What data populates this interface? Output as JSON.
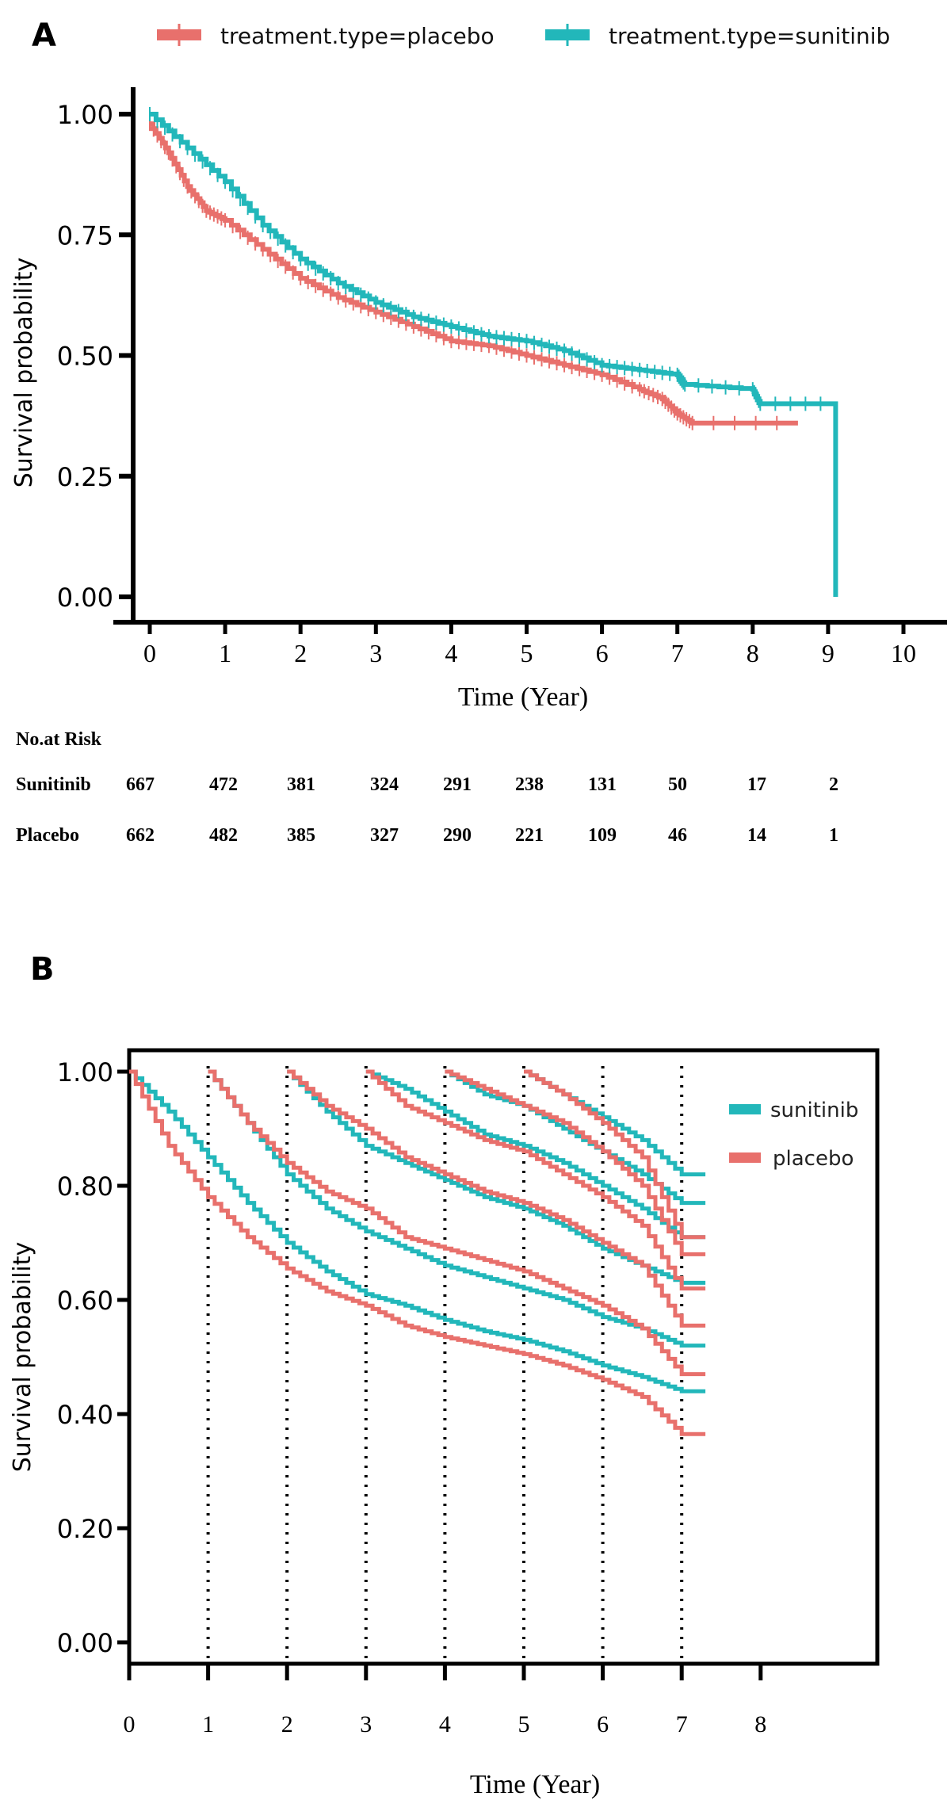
{
  "colors": {
    "placebo": "#E8706C",
    "sunitinib": "#22B7BA"
  },
  "chart_data": [
    {
      "panel_label": "A",
      "type": "line",
      "step": true,
      "xlabel": "Time (Year)",
      "ylabel": "Survival probability",
      "xlim": [
        0,
        10
      ],
      "ylim": [
        0,
        1
      ],
      "xticks": [
        "0",
        "1",
        "2",
        "3",
        "4",
        "5",
        "6",
        "7",
        "8",
        "9",
        "10"
      ],
      "yticks": [
        "0.00",
        "0.25",
        "0.50",
        "0.75",
        "1.00"
      ],
      "legend_position": "top",
      "grid": false,
      "series": [
        {
          "name": "treatment.type=placebo",
          "color": "#E8706C",
          "x": [
            0,
            0.25,
            0.5,
            0.75,
            1,
            1.5,
            2,
            2.5,
            3,
            3.5,
            4,
            4.5,
            5,
            5.5,
            6,
            6.5,
            6.8,
            7,
            7.2,
            8.6
          ],
          "y": [
            0.98,
            0.92,
            0.85,
            0.8,
            0.78,
            0.72,
            0.66,
            0.62,
            0.59,
            0.56,
            0.53,
            0.52,
            0.5,
            0.48,
            0.46,
            0.43,
            0.41,
            0.38,
            0.36,
            0.36
          ]
        },
        {
          "name": "treatment.type=sunitinib",
          "color": "#22B7BA",
          "x": [
            0,
            0.5,
            1,
            1.5,
            2,
            2.5,
            3,
            3.5,
            4,
            4.5,
            5,
            5.5,
            6,
            6.5,
            7,
            7.1,
            8,
            8.1,
            9.1,
            9.1
          ],
          "y": [
            1.0,
            0.93,
            0.86,
            0.77,
            0.7,
            0.65,
            0.61,
            0.58,
            0.56,
            0.54,
            0.53,
            0.51,
            0.48,
            0.47,
            0.46,
            0.44,
            0.43,
            0.4,
            0.4,
            0.0
          ]
        }
      ],
      "risk_table": {
        "title": "No.at Risk",
        "rows": [
          {
            "label": "Sunitinib",
            "values": [
              "667",
              "472",
              "381",
              "324",
              "291",
              "238",
              "131",
              "50",
              "17",
              "2"
            ]
          },
          {
            "label": "Placebo",
            "values": [
              "662",
              "482",
              "385",
              "327",
              "290",
              "221",
              "109",
              "46",
              "14",
              "1"
            ]
          }
        ]
      }
    },
    {
      "panel_label": "B",
      "type": "line",
      "step": true,
      "xlabel": "Time (Year)",
      "ylabel": "Survival probability",
      "xlim": [
        0,
        8
      ],
      "ylim": [
        0,
        1
      ],
      "xticks": [
        "0",
        "1",
        "2",
        "3",
        "4",
        "5",
        "6",
        "7",
        "8"
      ],
      "yticks": [
        "0.00",
        "0.20",
        "0.40",
        "0.60",
        "0.80",
        "1.00"
      ],
      "vertical_dotted_lines": [
        1,
        2,
        3,
        4,
        5,
        6,
        7
      ],
      "legend_position": "top-right",
      "legend": [
        "sunitinib",
        "placebo"
      ],
      "grid": false,
      "series": [
        {
          "group": "sunitinib",
          "landmark": 0,
          "x": [
            0,
            0.5,
            1,
            1.5,
            2,
            2.5,
            3,
            3.5,
            4,
            4.5,
            5,
            5.5,
            6,
            6.5,
            7,
            7.3
          ],
          "y": [
            1.0,
            0.93,
            0.85,
            0.77,
            0.7,
            0.65,
            0.61,
            0.59,
            0.565,
            0.545,
            0.53,
            0.51,
            0.485,
            0.465,
            0.44,
            0.44
          ]
        },
        {
          "group": "sunitinib",
          "landmark": 1,
          "x": [
            1,
            1.5,
            2,
            2.5,
            3,
            3.5,
            4,
            4.5,
            5,
            5.5,
            6,
            6.5,
            7,
            7.3
          ],
          "y": [
            1,
            0.91,
            0.82,
            0.76,
            0.72,
            0.69,
            0.66,
            0.64,
            0.62,
            0.6,
            0.57,
            0.55,
            0.52,
            0.52
          ]
        },
        {
          "group": "sunitinib",
          "landmark": 2,
          "x": [
            2,
            2.5,
            3,
            3.5,
            4,
            4.5,
            5,
            5.5,
            6,
            6.5,
            7,
            7.3
          ],
          "y": [
            1,
            0.93,
            0.87,
            0.84,
            0.81,
            0.78,
            0.76,
            0.73,
            0.69,
            0.66,
            0.63,
            0.63
          ]
        },
        {
          "group": "sunitinib",
          "landmark": 3,
          "x": [
            3,
            3.5,
            4,
            4.5,
            5,
            5.5,
            6,
            6.5,
            7,
            7.3
          ],
          "y": [
            1,
            0.97,
            0.93,
            0.89,
            0.87,
            0.84,
            0.8,
            0.76,
            0.71,
            0.71
          ]
        },
        {
          "group": "sunitinib",
          "landmark": 4,
          "x": [
            4,
            4.5,
            5,
            5.5,
            6,
            6.5,
            7,
            7.3
          ],
          "y": [
            1,
            0.96,
            0.94,
            0.9,
            0.86,
            0.82,
            0.77,
            0.77
          ]
        },
        {
          "group": "sunitinib",
          "landmark": 5,
          "x": [
            5,
            5.5,
            6,
            6.5,
            7,
            7.3
          ],
          "y": [
            1,
            0.96,
            0.92,
            0.88,
            0.82,
            0.82
          ]
        },
        {
          "group": "placebo",
          "landmark": 0,
          "x": [
            0,
            0.5,
            1,
            1.5,
            2,
            2.5,
            3,
            3.5,
            4,
            4.5,
            5,
            5.5,
            6,
            6.5,
            7,
            7.3
          ],
          "y": [
            1.0,
            0.87,
            0.78,
            0.71,
            0.655,
            0.615,
            0.59,
            0.555,
            0.535,
            0.52,
            0.505,
            0.485,
            0.46,
            0.43,
            0.365,
            0.365
          ]
        },
        {
          "group": "placebo",
          "landmark": 1,
          "x": [
            1,
            1.5,
            2,
            2.5,
            3,
            3.5,
            4,
            4.5,
            5,
            5.5,
            6,
            6.5,
            7,
            7.3
          ],
          "y": [
            1,
            0.91,
            0.84,
            0.79,
            0.76,
            0.71,
            0.69,
            0.67,
            0.65,
            0.62,
            0.59,
            0.55,
            0.47,
            0.47
          ]
        },
        {
          "group": "placebo",
          "landmark": 2,
          "x": [
            2,
            2.5,
            3,
            3.5,
            4,
            4.5,
            5,
            5.5,
            6,
            6.5,
            7,
            7.3
          ],
          "y": [
            1,
            0.94,
            0.9,
            0.85,
            0.82,
            0.79,
            0.77,
            0.74,
            0.7,
            0.66,
            0.555,
            0.555
          ]
        },
        {
          "group": "placebo",
          "landmark": 3,
          "x": [
            3,
            3.5,
            4,
            4.5,
            5,
            5.5,
            6,
            6.5,
            7,
            7.3
          ],
          "y": [
            1,
            0.94,
            0.91,
            0.88,
            0.86,
            0.82,
            0.78,
            0.73,
            0.62,
            0.62
          ]
        },
        {
          "group": "placebo",
          "landmark": 4,
          "x": [
            4,
            4.5,
            5,
            5.5,
            6,
            6.5,
            7,
            7.3
          ],
          "y": [
            1,
            0.97,
            0.94,
            0.91,
            0.86,
            0.8,
            0.68,
            0.68
          ]
        },
        {
          "group": "placebo",
          "landmark": 5,
          "x": [
            5,
            5.5,
            6,
            6.5,
            7,
            7.3
          ],
          "y": [
            1,
            0.96,
            0.91,
            0.85,
            0.71,
            0.71
          ]
        }
      ]
    }
  ]
}
